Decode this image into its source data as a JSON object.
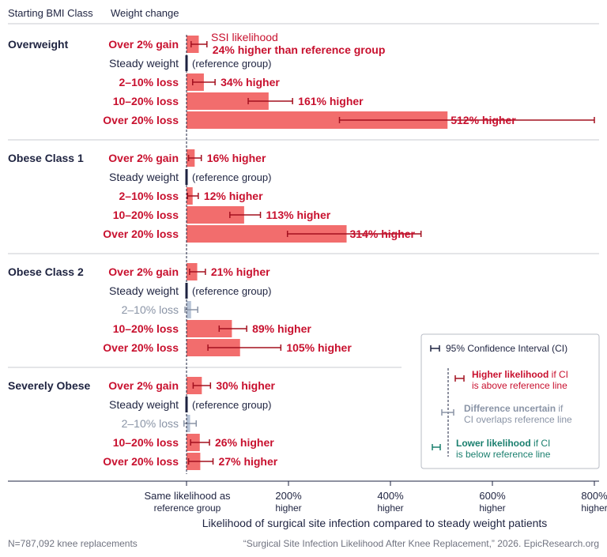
{
  "header": {
    "col1": "Starting BMI Class",
    "col2": "Weight change"
  },
  "annotation": {
    "line1": "SSI likelihood",
    "line2": "24% higher than reference group"
  },
  "axis": {
    "title": "Likelihood of surgical site infection compared to steady weight patients",
    "ticks": [
      {
        "value": 0,
        "line1": "Same likelihood as",
        "line2": "reference group"
      },
      {
        "value": 200,
        "line1": "200%",
        "line2": "higher"
      },
      {
        "value": 400,
        "line1": "400%",
        "line2": "higher"
      },
      {
        "value": 600,
        "line1": "600%",
        "line2": "higher"
      },
      {
        "value": 800,
        "line1": "800%",
        "line2": "higher"
      }
    ]
  },
  "legend": {
    "ci_label": "95% Confidence Interval (CI)",
    "items": [
      {
        "bold": "Higher likelihood",
        "rest1": " if CI",
        "line2": "is above reference line",
        "color": "#c8102e"
      },
      {
        "bold": "Difference uncertain",
        "rest1": " if",
        "line2": "CI overlaps reference line",
        "color": "#8a94a6"
      },
      {
        "bold": "Lower likelihood",
        "rest1": " if CI",
        "line2": "is below reference line",
        "color": "#1a7f6e"
      }
    ]
  },
  "footer": {
    "left": "N=787,092 knee replacements",
    "right": "“Surgical Site Infection Likelihood After Knee Replacement,” 2026. EpicResearch.org"
  },
  "colors": {
    "higher_bar": "#f26d6d",
    "higher_text": "#c8102e",
    "uncertain_bar": "#b8c4d6",
    "uncertain_text": "#8a94a6",
    "reference": "#1e2340",
    "ci_higher": "#a3101f"
  },
  "chart_data": {
    "type": "bar",
    "orientation": "horizontal",
    "xlabel": "Likelihood of surgical site infection compared to steady weight patients",
    "xlim": [
      0,
      800
    ],
    "groups": [
      {
        "name": "Overweight",
        "rows": [
          {
            "label": "Over 2% gain",
            "value": 24,
            "ci": [
              9,
              40
            ],
            "text": "24% higher than reference group",
            "status": "higher"
          },
          {
            "label": "Steady weight",
            "value": 0,
            "ci": null,
            "text": "(reference group)",
            "status": "reference"
          },
          {
            "label": "2–10% loss",
            "value": 34,
            "ci": [
              12,
              56
            ],
            "text": "34% higher",
            "status": "higher"
          },
          {
            "label": "10–20% loss",
            "value": 161,
            "ci": [
              121,
              208
            ],
            "text": "161% higher",
            "status": "higher"
          },
          {
            "label": "Over 20% loss",
            "value": 512,
            "ci": [
              300,
              800
            ],
            "text": "512% higher",
            "status": "higher"
          }
        ]
      },
      {
        "name": "Obese Class 1",
        "rows": [
          {
            "label": "Over 2% gain",
            "value": 16,
            "ci": [
              4,
              29
            ],
            "text": "16% higher",
            "status": "higher"
          },
          {
            "label": "Steady weight",
            "value": 0,
            "ci": null,
            "text": "(reference group)",
            "status": "reference"
          },
          {
            "label": "2–10% loss",
            "value": 12,
            "ci": [
              2,
              23
            ],
            "text": "12% higher",
            "status": "higher"
          },
          {
            "label": "10–20% loss",
            "value": 113,
            "ci": [
              85,
              145
            ],
            "text": "113% higher",
            "status": "higher"
          },
          {
            "label": "Over 20% loss",
            "value": 314,
            "ci": [
              198,
              460
            ],
            "text": "314% higher",
            "status": "higher"
          }
        ]
      },
      {
        "name": "Obese Class 2",
        "rows": [
          {
            "label": "Over 2% gain",
            "value": 21,
            "ci": [
              6,
              37
            ],
            "text": "21% higher",
            "status": "higher"
          },
          {
            "label": "Steady weight",
            "value": 0,
            "ci": null,
            "text": "(reference group)",
            "status": "reference"
          },
          {
            "label": "2–10% loss",
            "value": 9,
            "ci": [
              -3,
              22
            ],
            "text": "",
            "status": "uncertain"
          },
          {
            "label": "10–20% loss",
            "value": 89,
            "ci": [
              64,
              118
            ],
            "text": "89% higher",
            "status": "higher"
          },
          {
            "label": "Over 20% loss",
            "value": 105,
            "ci": [
              42,
              185
            ],
            "text": "105% higher",
            "status": "higher"
          }
        ]
      },
      {
        "name": "Severely Obese",
        "rows": [
          {
            "label": "Over 2% gain",
            "value": 30,
            "ci": [
              13,
              47
            ],
            "text": "30% higher",
            "status": "higher"
          },
          {
            "label": "Steady weight",
            "value": 0,
            "ci": null,
            "text": "(reference group)",
            "status": "reference"
          },
          {
            "label": "2–10% loss",
            "value": 7,
            "ci": [
              -5,
              19
            ],
            "text": "",
            "status": "uncertain"
          },
          {
            "label": "10–20% loss",
            "value": 26,
            "ci": [
              8,
              45
            ],
            "text": "26% higher",
            "status": "higher"
          },
          {
            "label": "Over 20% loss",
            "value": 27,
            "ci": [
              4,
              52
            ],
            "text": "27% higher",
            "status": "higher"
          }
        ]
      }
    ]
  }
}
